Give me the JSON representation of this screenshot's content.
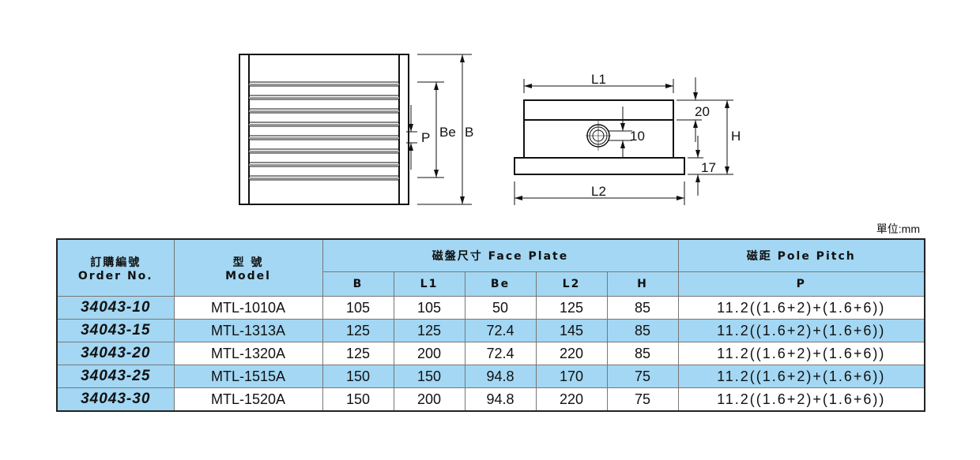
{
  "drawing": {
    "labels": {
      "P": "P",
      "Be": "Be",
      "B": "B",
      "L1": "L1",
      "L2": "L2",
      "bolt": "10",
      "top": "20",
      "H": "H",
      "base": "17"
    }
  },
  "unit_label": "單位:mm",
  "table": {
    "header": {
      "order_zh": "訂購編號",
      "order_en": "Order No.",
      "model_zh": "型 號",
      "model_en": "Model",
      "face_plate": "磁盤尺寸 Face Plate",
      "pole_pitch": "磁距 Pole Pitch",
      "sub": [
        "B",
        "L1",
        "Be",
        "L2",
        "H"
      ],
      "p": "P"
    },
    "rows": [
      {
        "order": "34043-10",
        "model": "MTL-1010A",
        "B": "105",
        "L1": "105",
        "Be": "50",
        "L2": "125",
        "H": "85",
        "P": "11.2((1.6+2)+(1.6+6))"
      },
      {
        "order": "34043-15",
        "model": "MTL-1313A",
        "B": "125",
        "L1": "125",
        "Be": "72.4",
        "L2": "145",
        "H": "85",
        "P": "11.2((1.6+2)+(1.6+6))"
      },
      {
        "order": "34043-20",
        "model": "MTL-1320A",
        "B": "125",
        "L1": "200",
        "Be": "72.4",
        "L2": "220",
        "H": "85",
        "P": "11.2((1.6+2)+(1.6+6))"
      },
      {
        "order": "34043-25",
        "model": "MTL-1515A",
        "B": "150",
        "L1": "150",
        "Be": "94.8",
        "L2": "170",
        "H": "75",
        "P": "11.2((1.6+2)+(1.6+6))"
      },
      {
        "order": "34043-30",
        "model": "MTL-1520A",
        "B": "150",
        "L1": "200",
        "Be": "94.8",
        "L2": "220",
        "H": "75",
        "P": "11.2((1.6+2)+(1.6+6))"
      }
    ]
  },
  "colors": {
    "header_bg": "#a3d7f3",
    "border": "#222222"
  }
}
